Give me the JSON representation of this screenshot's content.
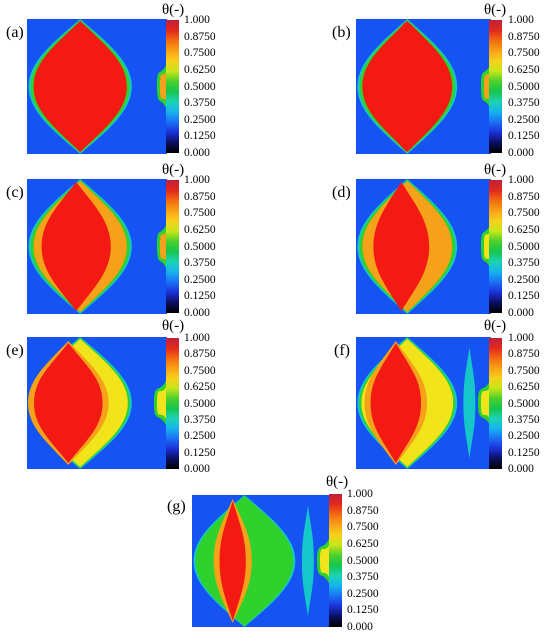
{
  "colorbar": {
    "title": "θ(-)",
    "ticks": [
      "1.000",
      "0.8750",
      "0.7500",
      "0.6250",
      "0.5000",
      "0.3750",
      "0.2500",
      "0.1250",
      "0.000"
    ],
    "gradient": [
      "#c0203a",
      "#e1281d",
      "#f36b10",
      "#fba115",
      "#f7d11a",
      "#c7e61a",
      "#4bd02c",
      "#16c54e",
      "#1bd3b6",
      "#15b3ee",
      "#1b6df5",
      "#1b2fd8",
      "#0a0e5c",
      "#000000"
    ]
  },
  "panels": [
    {
      "label": "(a)",
      "stage": 0
    },
    {
      "label": "(b)",
      "stage": 1
    },
    {
      "label": "(c)",
      "stage": 2
    },
    {
      "label": "(d)",
      "stage": 3
    },
    {
      "label": "(e)",
      "stage": 4
    },
    {
      "label": "(f)",
      "stage": 5
    },
    {
      "label": "(g)",
      "stage": 6
    }
  ],
  "colors": {
    "background_field": "#1553f2",
    "hot": "#f21a12",
    "warm": "#f6a11a",
    "yellow": "#f2e41b",
    "green": "#2fd12c",
    "cyan": "#15c7c9"
  }
}
